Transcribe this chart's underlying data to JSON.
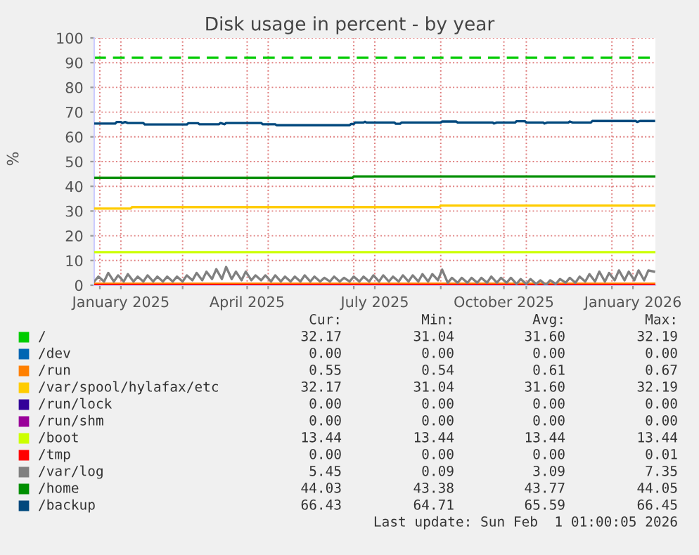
{
  "chart_data": {
    "type": "line",
    "title": "Disk usage in percent - by year",
    "ylabel": "%",
    "xlim": [
      "2024-12-28",
      "2026-02-01"
    ],
    "ylim": [
      0,
      100
    ],
    "xticks": [
      {
        "value": "2025-01-01",
        "label": null
      },
      {
        "value": "2025-01-16",
        "label": "January 2025"
      },
      {
        "value": "2025-03-01",
        "label": null
      },
      {
        "value": "2025-04-16",
        "label": "April 2025"
      },
      {
        "value": "2025-05-01",
        "label": null
      },
      {
        "value": "2025-07-01",
        "label": null
      },
      {
        "value": "2025-07-16",
        "label": "July 2025"
      },
      {
        "value": "2025-09-01",
        "label": null
      },
      {
        "value": "2025-10-16",
        "label": "October 2025"
      },
      {
        "value": "2025-11-01",
        "label": null
      },
      {
        "value": "2026-01-01",
        "label": null
      },
      {
        "value": "2026-01-16",
        "label": "January 2026"
      }
    ],
    "yticks": [
      0,
      10,
      20,
      30,
      40,
      50,
      60,
      70,
      80,
      90,
      100
    ],
    "grid": true,
    "legend": "bottom",
    "line_style": "solid",
    "marker": "none",
    "ref_lines": [
      {
        "axis": "y",
        "value": 92,
        "color": "#00cc00",
        "line_style": "dashed"
      }
    ],
    "series": [
      {
        "name": "/",
        "color": "#00cc00"
      },
      {
        "name": "/dev",
        "color": "#0066b3"
      },
      {
        "name": "/run",
        "color": "#ff8000",
        "x": [
          "2024-12-28",
          "2026-02-01"
        ],
        "values": [
          0.6,
          0.6
        ]
      },
      {
        "name": "/var/spool/hylafax/etc",
        "color": "#ffcc00",
        "x": [
          "2024-12-28",
          "2025-01-23",
          "2025-01-24",
          "2025-08-31",
          "2025-09-01",
          "2026-02-01"
        ],
        "values": [
          31.0,
          31.0,
          31.6,
          31.6,
          32.2,
          32.2
        ]
      },
      {
        "name": "/run/lock",
        "color": "#330099"
      },
      {
        "name": "/run/shm",
        "color": "#990099"
      },
      {
        "name": "/boot",
        "color": "#ccff00",
        "x": [
          "2024-12-28",
          "2026-02-01"
        ],
        "values": [
          13.4,
          13.4
        ]
      },
      {
        "name": "/tmp",
        "color": "#ff0000",
        "x": [
          "2024-12-28",
          "2026-02-01"
        ],
        "values": [
          0,
          0
        ]
      },
      {
        "name": "/var/log",
        "color": "#808080",
        "x": [
          "2024-12-28",
          "2024-12-31",
          "2025-01-04",
          "2025-01-07",
          "2025-01-11",
          "2025-01-14",
          "2025-01-18",
          "2025-01-21",
          "2025-01-25",
          "2025-01-28",
          "2025-02-01",
          "2025-02-04",
          "2025-02-08",
          "2025-02-11",
          "2025-02-15",
          "2025-02-18",
          "2025-02-22",
          "2025-02-25",
          "2025-03-01",
          "2025-03-04",
          "2025-03-08",
          "2025-03-11",
          "2025-03-15",
          "2025-03-18",
          "2025-03-22",
          "2025-03-25",
          "2025-03-29",
          "2025-04-01",
          "2025-04-05",
          "2025-04-08",
          "2025-04-12",
          "2025-04-15",
          "2025-04-19",
          "2025-04-22",
          "2025-04-26",
          "2025-04-29",
          "2025-05-03",
          "2025-05-06",
          "2025-05-10",
          "2025-05-13",
          "2025-05-17",
          "2025-05-20",
          "2025-05-24",
          "2025-05-27",
          "2025-05-31",
          "2025-06-03",
          "2025-06-07",
          "2025-06-10",
          "2025-06-14",
          "2025-06-17",
          "2025-06-21",
          "2025-06-24",
          "2025-06-28",
          "2025-07-01",
          "2025-07-05",
          "2025-07-08",
          "2025-07-12",
          "2025-07-15",
          "2025-07-19",
          "2025-07-22",
          "2025-07-26",
          "2025-07-29",
          "2025-08-02",
          "2025-08-05",
          "2025-08-09",
          "2025-08-12",
          "2025-08-16",
          "2025-08-19",
          "2025-08-23",
          "2025-08-26",
          "2025-08-30",
          "2025-09-02",
          "2025-09-06",
          "2025-09-09",
          "2025-09-13",
          "2025-09-16",
          "2025-09-20",
          "2025-09-23",
          "2025-09-27",
          "2025-09-30",
          "2025-10-04",
          "2025-10-07",
          "2025-10-11",
          "2025-10-14",
          "2025-10-18",
          "2025-10-21",
          "2025-10-25",
          "2025-10-28",
          "2025-11-01",
          "2025-11-04",
          "2025-11-08",
          "2025-11-11",
          "2025-11-15",
          "2025-11-18",
          "2025-11-22",
          "2025-11-25",
          "2025-11-29",
          "2025-12-02",
          "2025-12-06",
          "2025-12-09",
          "2025-12-13",
          "2025-12-16",
          "2025-12-20",
          "2025-12-23",
          "2025-12-27",
          "2025-12-30",
          "2026-01-03",
          "2026-01-06",
          "2026-01-10",
          "2026-01-13",
          "2026-01-17",
          "2026-01-20",
          "2026-01-24",
          "2026-01-27",
          "2026-01-31"
        ],
        "values": [
          1.5,
          3.5,
          1.5,
          5.0,
          1.5,
          4.0,
          1.5,
          4.5,
          1.5,
          3.5,
          1.5,
          4.0,
          1.5,
          3.5,
          1.5,
          3.5,
          1.5,
          3.5,
          1.5,
          4.0,
          2.0,
          5.0,
          2.0,
          5.5,
          2.5,
          6.5,
          2.5,
          7.4,
          2.5,
          5.5,
          2.0,
          5.5,
          2.0,
          4.0,
          2.0,
          4.0,
          1.5,
          4.0,
          1.5,
          3.5,
          1.5,
          3.5,
          1.5,
          4.0,
          1.5,
          3.5,
          1.5,
          3.0,
          1.5,
          3.5,
          1.5,
          3.0,
          1.5,
          3.5,
          1.5,
          3.5,
          1.5,
          4.0,
          1.5,
          4.0,
          1.5,
          3.5,
          1.5,
          4.0,
          1.5,
          4.0,
          1.5,
          4.5,
          1.5,
          4.5,
          2.0,
          6.3,
          1.0,
          3.0,
          1.0,
          3.0,
          1.0,
          3.0,
          1.0,
          3.0,
          1.0,
          3.5,
          1.0,
          3.0,
          1.0,
          3.0,
          0.5,
          2.5,
          0.5,
          2.5,
          0.5,
          2.0,
          0.1,
          2.0,
          0.5,
          2.5,
          1.0,
          3.0,
          1.0,
          3.5,
          1.5,
          4.5,
          1.5,
          5.5,
          1.5,
          5.0,
          2.0,
          6.0,
          2.0,
          5.5,
          2.0,
          6.0,
          2.0,
          6.0,
          5.5
        ]
      },
      {
        "name": "/home",
        "color": "#008f00",
        "x": [
          "2024-12-28",
          "2025-06-30",
          "2025-07-01",
          "2026-02-01"
        ],
        "values": [
          43.4,
          43.4,
          44.0,
          44.0
        ]
      },
      {
        "name": "/backup",
        "color": "#00487d",
        "x": [
          "2024-12-28",
          "2025-01-12",
          "2025-01-13",
          "2025-01-16",
          "2025-01-17",
          "2025-01-19",
          "2025-01-21",
          "2025-02-01",
          "2025-02-02",
          "2025-03-04",
          "2025-03-05",
          "2025-03-12",
          "2025-03-13",
          "2025-03-27",
          "2025-03-28",
          "2025-03-31",
          "2025-04-01",
          "2025-04-26",
          "2025-04-27",
          "2025-05-06",
          "2025-05-07",
          "2025-06-28",
          "2025-06-29",
          "2025-07-01",
          "2025-07-02",
          "2025-07-08",
          "2025-07-09",
          "2025-07-10",
          "2025-07-30",
          "2025-07-31",
          "2025-08-03",
          "2025-08-04",
          "2025-09-01",
          "2025-09-02",
          "2025-09-12",
          "2025-09-13",
          "2025-10-08",
          "2025-10-09",
          "2025-10-11",
          "2025-10-24",
          "2025-10-25",
          "2025-10-31",
          "2025-11-01",
          "2025-11-13",
          "2025-11-14",
          "2025-11-16",
          "2025-12-01",
          "2025-12-02",
          "2025-12-04",
          "2025-12-17",
          "2025-12-18",
          "2026-01-18",
          "2026-01-19",
          "2026-01-21",
          "2026-01-31"
        ],
        "values": [
          65.4,
          65.4,
          66.0,
          66.0,
          65.6,
          66.0,
          65.6,
          65.6,
          65.0,
          65.0,
          65.5,
          65.5,
          65.1,
          65.1,
          65.6,
          65.1,
          65.6,
          65.6,
          65.1,
          65.1,
          64.7,
          64.7,
          65.2,
          65.2,
          65.8,
          65.8,
          66.1,
          65.8,
          65.8,
          65.3,
          65.3,
          65.8,
          65.8,
          66.2,
          66.2,
          65.8,
          65.8,
          65.4,
          65.8,
          65.8,
          66.3,
          66.3,
          65.8,
          65.8,
          65.4,
          65.8,
          65.8,
          66.2,
          65.8,
          65.8,
          66.4,
          66.4,
          66.0,
          66.4,
          66.4
        ]
      }
    ],
    "annotations": [
      "Cur:",
      "Min:",
      "Avg:",
      "Max:",
      "32.17",
      "31.04",
      "31.60",
      "32.19",
      "0.00",
      "0.00",
      "0.00",
      "0.00",
      "0.55",
      "0.54",
      "0.61",
      "0.67",
      "32.17",
      "31.04",
      "31.60",
      "32.19",
      "0.00",
      "0.00",
      "0.00",
      "0.00",
      "0.00",
      "0.00",
      "0.00",
      "0.00",
      "13.44",
      "13.44",
      "13.44",
      "13.44",
      "0.00",
      "0.00",
      "0.00",
      "0.01",
      "5.45",
      "0.09",
      "3.09",
      "7.35",
      "44.03",
      "43.38",
      "43.77",
      "44.05",
      "66.43",
      "64.71",
      "65.59",
      "66.45",
      "Last update: Sun Feb  1 01:00:05 2026"
    ]
  }
}
